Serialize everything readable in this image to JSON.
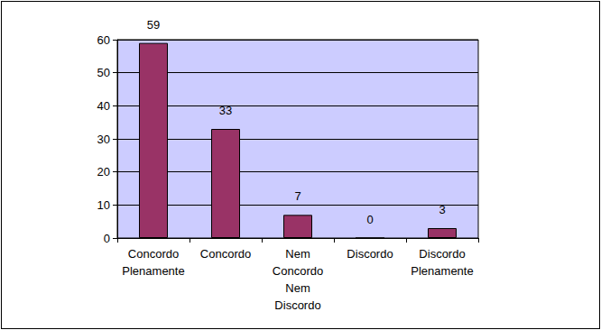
{
  "chart_data": {
    "type": "bar",
    "categories": [
      "Concordo Plenamente",
      "Concordo",
      "Nem Concordo Nem Discordo",
      "Discordo",
      "Discordo Plenamente"
    ],
    "values": [
      59,
      33,
      7,
      0,
      3
    ],
    "color": "#993366",
    "ylim": [
      0,
      60
    ],
    "yticks": [
      0,
      10,
      20,
      30,
      40,
      50,
      60
    ],
    "grid": true,
    "data_labels": true
  }
}
